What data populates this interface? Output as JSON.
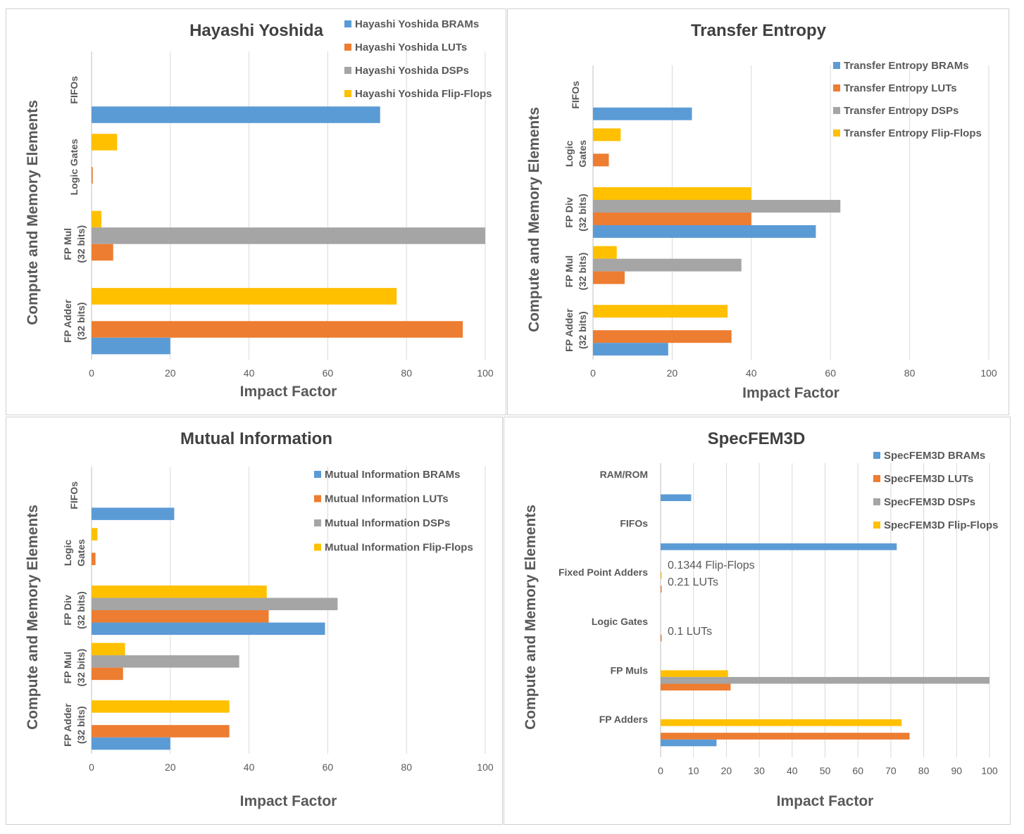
{
  "colors": {
    "Flip-Flops": "#FFC000",
    "DSPs": "#A5A5A5",
    "LUTs": "#ED7D31",
    "BRAMs": "#5B9BD5"
  },
  "chart_data": [
    {
      "type": "bar",
      "orientation": "horizontal",
      "title": "Hayashi Yoshida",
      "xlabel": "Impact Factor",
      "ylabel": "Compute and Memory Elements",
      "xlim": [
        0,
        100
      ],
      "xticks": [
        0,
        20,
        40,
        60,
        80,
        100
      ],
      "grid": true,
      "legend_position": "top-right",
      "categories": [
        "FP Adder (32 bits)",
        "FP Mul (32 bits)",
        "Logic Gates",
        "FIFOs"
      ],
      "series": [
        {
          "name": "Hayashi Yoshida Flip-Flops",
          "key": "Flip-Flops",
          "values": [
            77.5,
            2.5,
            6.5,
            null
          ]
        },
        {
          "name": "Hayashi Yoshida DSPs",
          "key": "DSPs",
          "values": [
            null,
            100,
            null,
            null
          ]
        },
        {
          "name": "Hayashi Yoshida LUTs",
          "key": "LUTs",
          "values": [
            94.3,
            5.5,
            0.3,
            null
          ]
        },
        {
          "name": "Hayashi Yoshida BRAMs",
          "key": "BRAMs",
          "values": [
            20,
            null,
            null,
            73.3
          ]
        }
      ],
      "annotations": []
    },
    {
      "type": "bar",
      "orientation": "horizontal",
      "title": "Transfer Entropy",
      "xlabel": "Impact Factor",
      "ylabel": "Compute and Memory Elements",
      "xlim": [
        0,
        100
      ],
      "xticks": [
        0,
        20,
        40,
        60,
        80,
        100
      ],
      "grid": true,
      "legend_position": "top-right",
      "categories": [
        "FP Adder (32 bits)",
        "FP Mul (32 bits)",
        "FP Div (32 bits)",
        "Logic Gates",
        "FIFOs"
      ],
      "series": [
        {
          "name": "Transfer Entropy Flip-Flops",
          "key": "Flip-Flops",
          "values": [
            34,
            6,
            40,
            7,
            null
          ]
        },
        {
          "name": "Transfer Entropy DSPs",
          "key": "DSPs",
          "values": [
            null,
            37.5,
            62.5,
            null,
            null
          ]
        },
        {
          "name": "Transfer Entropy LUTs",
          "key": "LUTs",
          "values": [
            35,
            8,
            40,
            4,
            null
          ]
        },
        {
          "name": "Transfer Entropy BRAMs",
          "key": "BRAMs",
          "values": [
            19,
            null,
            56.3,
            null,
            25
          ]
        }
      ],
      "annotations": []
    },
    {
      "type": "bar",
      "orientation": "horizontal",
      "title": "Mutual Information",
      "xlabel": "Impact Factor",
      "ylabel": "Compute and Memory Elements",
      "xlim": [
        0,
        100
      ],
      "xticks": [
        0,
        20,
        40,
        60,
        80,
        100
      ],
      "grid": true,
      "legend_position": "top-right",
      "categories": [
        "FP Adder (32 bits)",
        "FP Mul (32 bits)",
        "FP Div (32 bits)",
        "Logic Gates",
        "FIFOs"
      ],
      "series": [
        {
          "name": "Mutual Information Flip-Flops",
          "key": "Flip-Flops",
          "values": [
            35,
            8.5,
            44.5,
            1.5,
            null
          ]
        },
        {
          "name": "Mutual Information DSPs",
          "key": "DSPs",
          "values": [
            null,
            37.5,
            62.5,
            null,
            null
          ]
        },
        {
          "name": "Mutual Information LUTs",
          "key": "LUTs",
          "values": [
            35,
            8,
            45,
            1,
            null
          ]
        },
        {
          "name": "Mutual Information BRAMs",
          "key": "BRAMs",
          "values": [
            20,
            null,
            59.3,
            null,
            21
          ]
        }
      ],
      "annotations": []
    },
    {
      "type": "bar",
      "orientation": "horizontal",
      "title": "SpecFEM3D",
      "xlabel": "Impact Factor",
      "ylabel": "Compute and Memory Elements",
      "xlim": [
        0,
        100
      ],
      "xticks": [
        0,
        10,
        20,
        30,
        40,
        50,
        60,
        70,
        80,
        90,
        100
      ],
      "grid": true,
      "legend_position": "top-right",
      "categories": [
        "FP Adders",
        "FP Muls",
        "Logic Gates",
        "Fixed Point Adders",
        "FIFOs",
        "RAM/ROM"
      ],
      "series": [
        {
          "name": "SpecFEM3D Flip-Flops",
          "key": "Flip-Flops",
          "values": [
            73.3,
            20.5,
            0,
            0.1344,
            null,
            null
          ]
        },
        {
          "name": "SpecFEM3D DSPs",
          "key": "DSPs",
          "values": [
            null,
            100,
            null,
            null,
            null,
            null
          ]
        },
        {
          "name": "SpecFEM3D LUTs",
          "key": "LUTs",
          "values": [
            75.7,
            21.3,
            0.1,
            0.21,
            null,
            null
          ]
        },
        {
          "name": "SpecFEM3D BRAMs",
          "key": "BRAMs",
          "values": [
            17,
            null,
            null,
            null,
            71.8,
            9.3
          ]
        }
      ],
      "annotations": [
        {
          "category": "Fixed Point Adders",
          "row": 0,
          "text": "0.1344 Flip-Flops"
        },
        {
          "category": "Fixed Point Adders",
          "row": 1,
          "text": "0.21 LUTs"
        },
        {
          "category": "Logic Gates",
          "row": 1,
          "text": "0.1 LUTs"
        }
      ]
    }
  ]
}
